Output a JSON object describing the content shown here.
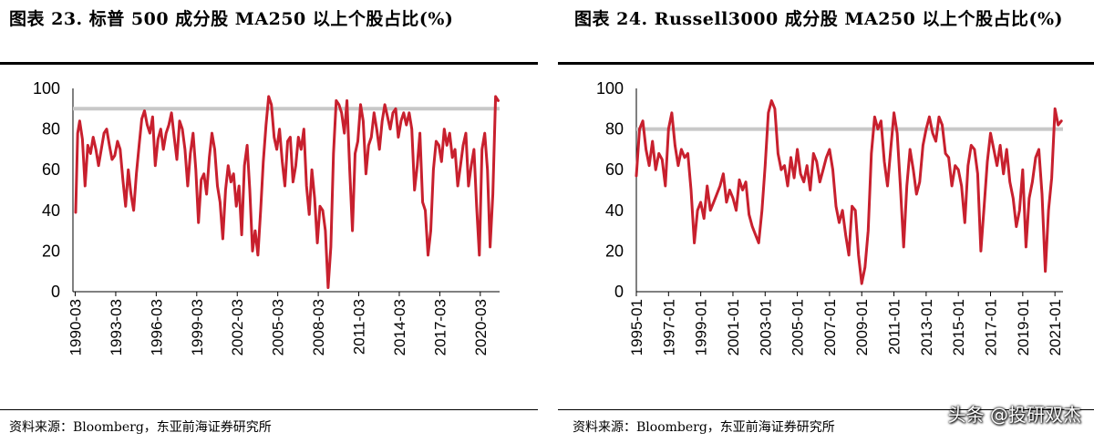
{
  "charts": [
    {
      "title": "图表 23. 标普 500 成分股 MA250 以上个股占比(%)",
      "source": "资料来源：Bloomberg，东亚前海证券研究所",
      "chart_data": {
        "type": "line",
        "title": "标普 500 成分股 MA250 以上个股占比(%)",
        "xlabel": "",
        "ylabel": "",
        "ylim": [
          0,
          100
        ],
        "yticks": [
          0,
          20,
          40,
          60,
          80,
          100
        ],
        "xlim": [
          1990.0,
          2021.6
        ],
        "xtick_labels": [
          "1990-03",
          "1993-03",
          "1996-03",
          "1999-03",
          "2002-03",
          "2005-03",
          "2008-03",
          "2011-03",
          "2014-03",
          "2017-03",
          "2020-03"
        ],
        "xtick_values": [
          1990.17,
          1993.17,
          1996.17,
          1999.17,
          2002.17,
          2005.17,
          2008.17,
          2011.17,
          2014.17,
          2017.17,
          2020.17
        ],
        "reference_line": 90,
        "series": [
          {
            "name": "MA250以上个股占比",
            "x": [
              1990.2,
              1990.35,
              1990.5,
              1990.7,
              1990.9,
              1991.1,
              1991.3,
              1991.5,
              1991.7,
              1991.9,
              1992.1,
              1992.3,
              1992.5,
              1992.7,
              1992.9,
              1993.1,
              1993.3,
              1993.5,
              1993.7,
              1993.9,
              1994.1,
              1994.3,
              1994.5,
              1994.7,
              1994.9,
              1995.1,
              1995.3,
              1995.5,
              1995.7,
              1995.9,
              1996.1,
              1996.3,
              1996.5,
              1996.7,
              1996.9,
              1997.1,
              1997.3,
              1997.5,
              1997.7,
              1997.9,
              1998.1,
              1998.3,
              1998.5,
              1998.7,
              1998.9,
              1999.1,
              1999.3,
              1999.5,
              1999.7,
              1999.9,
              2000.1,
              2000.3,
              2000.5,
              2000.7,
              2000.9,
              2001.1,
              2001.3,
              2001.5,
              2001.7,
              2001.9,
              2002.1,
              2002.3,
              2002.5,
              2002.7,
              2002.9,
              2003.1,
              2003.3,
              2003.5,
              2003.7,
              2003.9,
              2004.1,
              2004.3,
              2004.5,
              2004.7,
              2004.9,
              2005.1,
              2005.3,
              2005.5,
              2005.7,
              2005.9,
              2006.1,
              2006.3,
              2006.5,
              2006.7,
              2006.9,
              2007.1,
              2007.3,
              2007.5,
              2007.7,
              2007.9,
              2008.1,
              2008.3,
              2008.5,
              2008.7,
              2008.9,
              2009.1,
              2009.3,
              2009.5,
              2009.7,
              2009.9,
              2010.1,
              2010.3,
              2010.5,
              2010.7,
              2010.9,
              2011.1,
              2011.3,
              2011.5,
              2011.7,
              2011.9,
              2012.1,
              2012.3,
              2012.5,
              2012.7,
              2012.9,
              2013.1,
              2013.3,
              2013.5,
              2013.7,
              2013.9,
              2014.1,
              2014.3,
              2014.5,
              2014.7,
              2014.9,
              2015.1,
              2015.3,
              2015.5,
              2015.7,
              2015.9,
              2016.1,
              2016.3,
              2016.5,
              2016.7,
              2016.9,
              2017.1,
              2017.3,
              2017.5,
              2017.7,
              2017.9,
              2018.1,
              2018.3,
              2018.5,
              2018.7,
              2018.9,
              2019.1,
              2019.3,
              2019.5,
              2019.7,
              2019.9,
              2020.1,
              2020.3,
              2020.5,
              2020.7,
              2020.9,
              2021.1,
              2021.3,
              2021.5
            ],
            "values": [
              39,
              78,
              84,
              75,
              52,
              72,
              68,
              76,
              70,
              62,
              70,
              78,
              80,
              72,
              65,
              67,
              74,
              70,
              55,
              42,
              60,
              48,
              40,
              58,
              72,
              85,
              89,
              82,
              78,
              86,
              62,
              75,
              80,
              70,
              78,
              82,
              88,
              76,
              65,
              84,
              80,
              70,
              52,
              68,
              78,
              60,
              34,
              55,
              58,
              48,
              66,
              78,
              70,
              52,
              44,
              26,
              50,
              62,
              54,
              58,
              42,
              52,
              28,
              62,
              72,
              50,
              20,
              30,
              18,
              40,
              64,
              82,
              96,
              92,
              76,
              70,
              80,
              64,
              52,
              74,
              76,
              54,
              62,
              76,
              70,
              80,
              52,
              38,
              60,
              46,
              24,
              42,
              40,
              30,
              2,
              22,
              68,
              94,
              92,
              88,
              78,
              94,
              60,
              30,
              68,
              74,
              92,
              84,
              58,
              72,
              76,
              88,
              80,
              70,
              84,
              92,
              86,
              80,
              88,
              90,
              76,
              84,
              88,
              82,
              88,
              80,
              50,
              62,
              78,
              44,
              40,
              18,
              30,
              60,
              74,
              72,
              64,
              80,
              72,
              78,
              66,
              70,
              52,
              62,
              72,
              78,
              52,
              62,
              70,
              42,
              18,
              70,
              78,
              60,
              22,
              48,
              96,
              94
            ]
          }
        ]
      }
    },
    {
      "title": "图表 24. Russell3000 成分股 MA250 以上个股占比(%)",
      "source": "资料来源：Bloomberg，东亚前海证券研究所",
      "chart_data": {
        "type": "line",
        "title": "Russell3000 成分股 MA250 以上个股占比(%)",
        "xlabel": "",
        "ylabel": "",
        "ylim": [
          0,
          100
        ],
        "yticks": [
          0,
          20,
          40,
          60,
          80,
          100
        ],
        "xlim": [
          1995.0,
          2021.5
        ],
        "xtick_labels": [
          "1995-01",
          "1997-01",
          "1999-01",
          "2001-01",
          "2003-01",
          "2005-01",
          "2007-01",
          "2009-01",
          "2011-01",
          "2013-01",
          "2015-01",
          "2017-01",
          "2019-01",
          "2021-01"
        ],
        "xtick_values": [
          1995.0,
          1997.0,
          1999.0,
          2001.0,
          2003.0,
          2005.0,
          2007.0,
          2009.0,
          2011.0,
          2013.0,
          2015.0,
          2017.0,
          2019.0,
          2021.0
        ],
        "reference_line": 80,
        "series": [
          {
            "name": "MA250以上个股占比",
            "x": [
              1995.0,
              1995.2,
              1995.4,
              1995.6,
              1995.8,
              1996.0,
              1996.2,
              1996.4,
              1996.6,
              1996.8,
              1997.0,
              1997.2,
              1997.4,
              1997.6,
              1997.8,
              1998.0,
              1998.2,
              1998.4,
              1998.6,
              1998.8,
              1999.0,
              1999.2,
              1999.4,
              1999.6,
              1999.8,
              2000.0,
              2000.2,
              2000.4,
              2000.6,
              2000.8,
              2001.0,
              2001.2,
              2001.4,
              2001.6,
              2001.8,
              2002.0,
              2002.2,
              2002.4,
              2002.6,
              2002.8,
              2003.0,
              2003.2,
              2003.4,
              2003.6,
              2003.8,
              2004.0,
              2004.2,
              2004.4,
              2004.6,
              2004.8,
              2005.0,
              2005.2,
              2005.4,
              2005.6,
              2005.8,
              2006.0,
              2006.2,
              2006.4,
              2006.6,
              2006.8,
              2007.0,
              2007.2,
              2007.4,
              2007.6,
              2007.8,
              2008.0,
              2008.2,
              2008.4,
              2008.6,
              2008.8,
              2009.0,
              2009.2,
              2009.4,
              2009.6,
              2009.8,
              2010.0,
              2010.2,
              2010.4,
              2010.6,
              2010.8,
              2011.0,
              2011.2,
              2011.4,
              2011.6,
              2011.8,
              2012.0,
              2012.2,
              2012.4,
              2012.6,
              2012.8,
              2013.0,
              2013.2,
              2013.4,
              2013.6,
              2013.8,
              2014.0,
              2014.2,
              2014.4,
              2014.6,
              2014.8,
              2015.0,
              2015.2,
              2015.4,
              2015.6,
              2015.8,
              2016.0,
              2016.2,
              2016.4,
              2016.6,
              2016.8,
              2017.0,
              2017.2,
              2017.4,
              2017.6,
              2017.8,
              2018.0,
              2018.2,
              2018.4,
              2018.6,
              2018.8,
              2019.0,
              2019.2,
              2019.4,
              2019.6,
              2019.8,
              2020.0,
              2020.2,
              2020.4,
              2020.6,
              2020.8,
              2021.0,
              2021.2,
              2021.4
            ],
            "values": [
              57,
              80,
              84,
              70,
              62,
              74,
              60,
              68,
              65,
              52,
              80,
              88,
              72,
              62,
              70,
              66,
              68,
              50,
              24,
              40,
              44,
              36,
              52,
              40,
              44,
              48,
              52,
              58,
              44,
              50,
              46,
              40,
              55,
              50,
              54,
              38,
              32,
              28,
              24,
              40,
              62,
              88,
              94,
              90,
              68,
              60,
              62,
              52,
              66,
              56,
              70,
              58,
              54,
              62,
              50,
              68,
              64,
              54,
              60,
              66,
              70,
              60,
              42,
              34,
              40,
              28,
              18,
              42,
              40,
              18,
              4,
              12,
              30,
              68,
              86,
              80,
              84,
              64,
              52,
              70,
              88,
              78,
              52,
              22,
              52,
              70,
              60,
              48,
              54,
              72,
              80,
              86,
              78,
              74,
              86,
              82,
              68,
              66,
              52,
              62,
              60,
              52,
              34,
              62,
              72,
              70,
              58,
              20,
              42,
              64,
              78,
              70,
              62,
              72,
              58,
              70,
              54,
              46,
              32,
              40,
              60,
              22,
              46,
              54,
              66,
              70,
              48,
              10,
              40,
              56,
              90,
              82,
              84
            ]
          }
        ]
      }
    }
  ],
  "watermark": "头条 @投研双杰"
}
